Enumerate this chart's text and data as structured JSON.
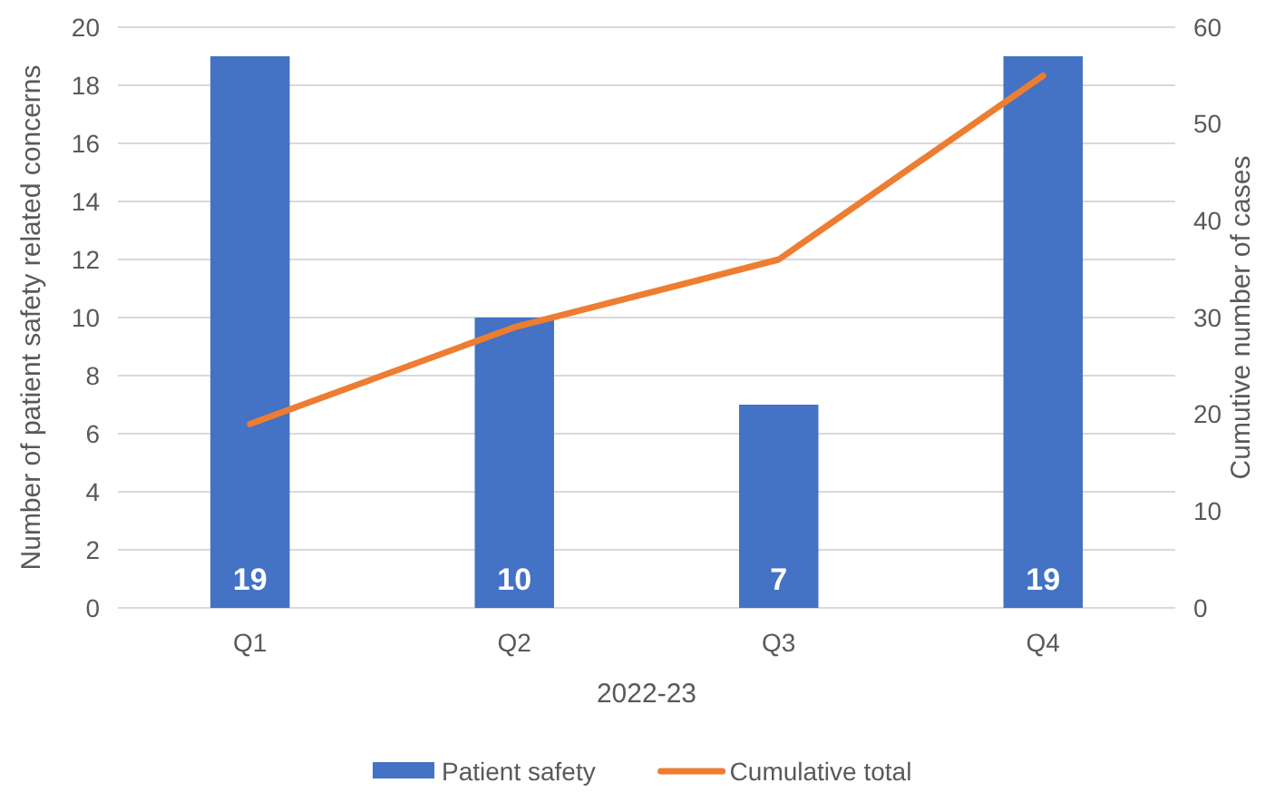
{
  "chart_data": {
    "type": "bar",
    "xlabel": "2022-23",
    "ylabel": "Number of patient safety related concerns",
    "y2label": "Cumutive number of cases",
    "categories": [
      "Q1",
      "Q2",
      "Q3",
      "Q4"
    ],
    "series": [
      {
        "name": "Patient safety",
        "color": "#4472c4",
        "values": [
          19,
          10,
          7,
          19
        ],
        "value_labels": [
          "19",
          "10",
          "7",
          "19"
        ]
      },
      {
        "name": "Cumulative total",
        "type": "line",
        "axis": "y2",
        "color": "#ed7d31",
        "values": [
          19,
          29,
          36,
          55
        ],
        "marker": "none"
      }
    ],
    "ylim": [
      0,
      20
    ],
    "yticks": [
      0,
      2,
      4,
      6,
      8,
      10,
      12,
      14,
      16,
      18,
      20
    ],
    "y2lim": [
      0,
      60
    ],
    "y2ticks": [
      0,
      10,
      20,
      30,
      40,
      50,
      60
    ],
    "grid": "y",
    "legend": "bottom"
  }
}
